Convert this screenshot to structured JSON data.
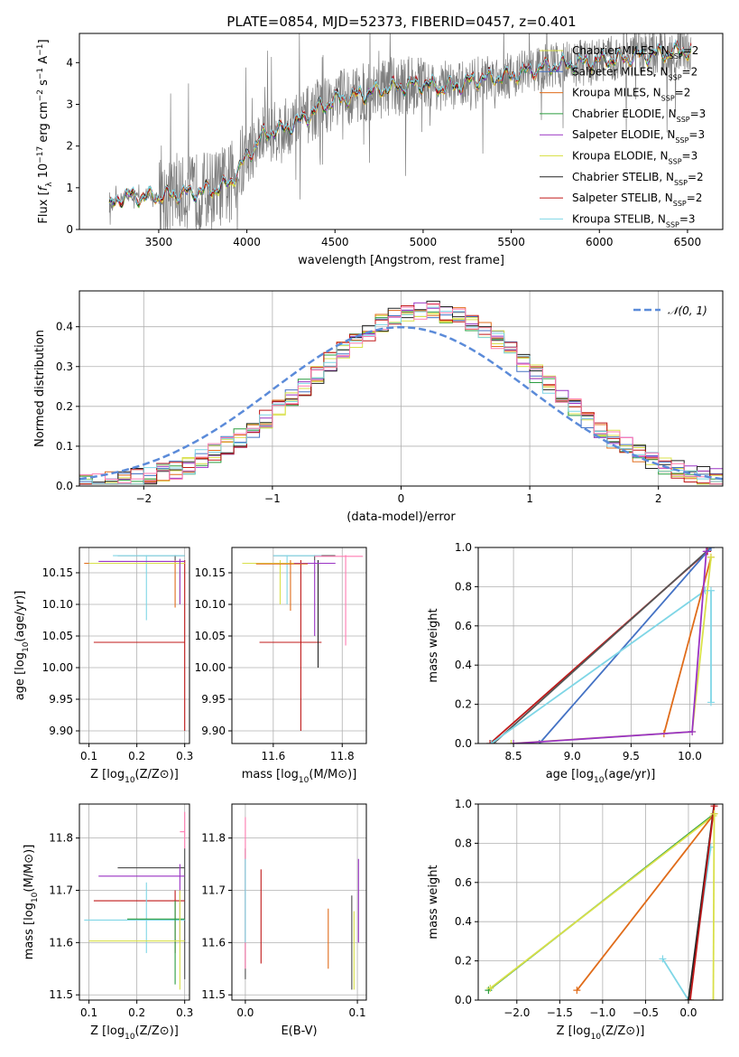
{
  "colors": [
    "#4c4c4c",
    "#1f1f1f",
    "#4472c4",
    "#e06c1a",
    "#2a9d3f",
    "#9a33c4",
    "#d9e04a",
    "#222222",
    "#c01818",
    "#7fd6e6",
    "#ff7bb0",
    "#555555"
  ],
  "legend_colors": [
    "#d9e04a",
    "#4472c4",
    "#e06c1a",
    "#2a9d3f",
    "#9a33c4",
    "#d9e04a",
    "#222222",
    "#c01818",
    "#7fd6e6"
  ],
  "chart_data": [
    {
      "id": "spectrum",
      "type": "line",
      "title": "PLATE=0854, MJD=52373, FIBERID=0457, z=0.401",
      "xlabel": "wavelength [Angstrom, rest frame]",
      "ylabel": "Flux [f_λ 10^-17 erg cm^-2 s^-1 A^-1]",
      "xlim": [
        3050,
        6700
      ],
      "ylim": [
        0,
        4.7
      ],
      "xticks": [
        3500,
        4000,
        4500,
        5000,
        5500,
        6000,
        6500
      ],
      "yticks": [
        0,
        1,
        2,
        3,
        4
      ],
      "grid": false,
      "legend_position": "upper-right",
      "data_color": "#7f7f7f",
      "continuum_knots": {
        "x": [
          3220,
          3260,
          3300,
          3400,
          3500,
          3600,
          3700,
          3800,
          3900,
          4000,
          4100,
          4200,
          4300,
          4400,
          4500,
          4600,
          4700,
          4800,
          4900,
          5000,
          5100,
          5200,
          5300,
          5400,
          5500,
          5600,
          5700,
          5800,
          5900,
          6000,
          6100,
          6200,
          6300,
          6400,
          6520
        ],
        "y": [
          0.5,
          0.7,
          0.8,
          0.78,
          0.8,
          0.85,
          0.9,
          0.95,
          1.1,
          1.75,
          2.3,
          2.4,
          2.6,
          2.9,
          3.1,
          3.2,
          3.3,
          3.4,
          3.45,
          3.5,
          3.4,
          3.45,
          3.6,
          3.65,
          3.7,
          3.8,
          3.9,
          3.95,
          4.0,
          4.05,
          4.1,
          4.15,
          4.2,
          4.25,
          4.3
        ]
      },
      "legend": [
        {
          "name": "Chabrier MILES, N",
          "sub": "SSP",
          "suffix": "=2"
        },
        {
          "name": "Salpeter MILES, N",
          "sub": "SSP",
          "suffix": "=2"
        },
        {
          "name": "Kroupa MILES, N",
          "sub": "SSP",
          "suffix": "=2"
        },
        {
          "name": "Chabrier ELODIE, N",
          "sub": "SSP",
          "suffix": "=3"
        },
        {
          "name": "Salpeter ELODIE, N",
          "sub": "SSP",
          "suffix": "=3"
        },
        {
          "name": "Kroupa ELODIE, N",
          "sub": "SSP",
          "suffix": "=3"
        },
        {
          "name": "Chabrier STELIB, N",
          "sub": "SSP",
          "suffix": "=2"
        },
        {
          "name": "Salpeter STELIB, N",
          "sub": "SSP",
          "suffix": "=2"
        },
        {
          "name": "Kroupa STELIB, N",
          "sub": "SSP",
          "suffix": "=3"
        }
      ]
    },
    {
      "id": "residuals",
      "type": "histogram",
      "xlabel": "(data-model)/error",
      "ylabel": "Normed distribution",
      "xlim": [
        -2.5,
        2.5
      ],
      "ylim": [
        0,
        0.49
      ],
      "xticks": [
        -2,
        -1,
        0,
        1,
        2
      ],
      "yticks": [
        0.0,
        0.1,
        0.2,
        0.3,
        0.4
      ],
      "grid": true,
      "bin_width": 0.1,
      "reference_curve": {
        "name": "𝒩(0, 1)",
        "mean": 0,
        "sigma": 1,
        "color": "#5b8bd9",
        "style": "dashed"
      },
      "legend_position": "upper-right"
    },
    {
      "id": "age-vs-Z",
      "type": "errorbar",
      "xlabel": "Z [log10(Z/Z⊙)]",
      "ylabel": "age [log10(age/yr)]",
      "xlim": [
        0.08,
        0.31
      ],
      "ylim": [
        9.88,
        10.19
      ],
      "xticks": [
        0.1,
        0.2,
        0.3
      ],
      "yticks": [
        9.9,
        9.95,
        10.0,
        10.05,
        10.1,
        10.15
      ],
      "grid": true,
      "points": [
        {
          "x": 0.28,
          "y": 10.177,
          "xlo": 0.16,
          "xhi": 0.3,
          "ylo": 10.17,
          "yhi": 10.178,
          "c": 0
        },
        {
          "x": 0.3,
          "y": 10.04,
          "xlo": 0.11,
          "xhi": 0.3,
          "ylo": 9.9,
          "yhi": 10.17,
          "c": 8
        },
        {
          "x": 0.22,
          "y": 10.177,
          "xlo": 0.15,
          "xhi": 0.3,
          "ylo": 10.075,
          "yhi": 10.178,
          "c": 9
        },
        {
          "x": 0.28,
          "y": 10.165,
          "xlo": 0.09,
          "xhi": 0.3,
          "ylo": 10.095,
          "yhi": 10.17,
          "c": 3
        },
        {
          "x": 0.29,
          "y": 10.165,
          "xlo": 0.1,
          "xhi": 0.3,
          "ylo": 10.1,
          "yhi": 10.17,
          "c": 6
        },
        {
          "x": 0.29,
          "y": 10.168,
          "xlo": 0.12,
          "xhi": 0.3,
          "ylo": 10.1,
          "yhi": 10.172,
          "c": 5
        }
      ]
    },
    {
      "id": "age-vs-mass",
      "type": "errorbar",
      "xlabel": "mass [log10(M/M⊙)]",
      "ylabel": "",
      "xlim": [
        11.48,
        11.87
      ],
      "ylim": [
        9.88,
        10.19
      ],
      "xticks": [
        11.6,
        11.8
      ],
      "yticks": [
        9.9,
        9.95,
        10.0,
        10.05,
        10.1,
        10.15
      ],
      "grid": true,
      "points": [
        {
          "x": 11.72,
          "y": 10.177,
          "xlo": 11.6,
          "xhi": 11.78,
          "ylo": 10.17,
          "yhi": 10.178,
          "c": 0
        },
        {
          "x": 11.68,
          "y": 10.04,
          "xlo": 11.56,
          "xhi": 11.74,
          "ylo": 9.9,
          "yhi": 10.17,
          "c": 8
        },
        {
          "x": 11.64,
          "y": 10.177,
          "xlo": 11.6,
          "xhi": 11.74,
          "ylo": 10.1,
          "yhi": 10.178,
          "c": 9
        },
        {
          "x": 11.73,
          "y": 10.165,
          "xlo": 11.53,
          "xhi": 11.78,
          "ylo": 10.0,
          "yhi": 10.17,
          "c": 7
        },
        {
          "x": 11.72,
          "y": 10.165,
          "xlo": 11.64,
          "xhi": 11.78,
          "ylo": 10.05,
          "yhi": 10.17,
          "c": 5
        },
        {
          "x": 11.81,
          "y": 10.176,
          "xlo": 11.72,
          "xhi": 11.86,
          "ylo": 10.035,
          "yhi": 10.178,
          "c": 10
        },
        {
          "x": 11.62,
          "y": 10.165,
          "xlo": 11.51,
          "xhi": 11.66,
          "ylo": 10.1,
          "yhi": 10.17,
          "c": 6
        },
        {
          "x": 11.65,
          "y": 10.164,
          "xlo": 11.55,
          "xhi": 11.7,
          "ylo": 10.09,
          "yhi": 10.17,
          "c": 3
        }
      ]
    },
    {
      "id": "weight-vs-age",
      "type": "line",
      "xlabel": "age [log10(age/yr)]",
      "ylabel": "mass weight",
      "xlim": [
        8.2,
        10.28
      ],
      "ylim": [
        0,
        1
      ],
      "xticks": [
        8.5,
        9.0,
        9.5,
        10.0
      ],
      "yticks": [
        0.0,
        0.2,
        0.4,
        0.6,
        0.8,
        1.0
      ],
      "grid": true,
      "series": [
        {
          "x": [
            8.3,
            10.15
          ],
          "y": [
            0.0,
            0.98
          ],
          "c": 8
        },
        {
          "x": [
            8.33,
            10.18
          ],
          "y": [
            0.0,
            1.0
          ],
          "c": 11
        },
        {
          "x": [
            8.72,
            10.18
          ],
          "y": [
            0.0,
            1.0
          ],
          "c": 2
        },
        {
          "x": [
            8.31,
            10.13
          ],
          "y": [
            0.0,
            0.78
          ],
          "c": 9
        },
        {
          "x": [
            9.78,
            10.18
          ],
          "y": [
            0.05,
            0.95
          ],
          "c": 3
        },
        {
          "x": [
            8.48,
            10.02,
            10.18
          ],
          "y": [
            0.0,
            0.06,
            0.95
          ],
          "c": 6
        },
        {
          "x": [
            8.5,
            10.02,
            10.14
          ],
          "y": [
            0.0,
            0.06,
            0.98
          ],
          "c": 5
        },
        {
          "x": [
            10.18,
            10.18
          ],
          "y": [
            0.21,
            0.78
          ],
          "c": 9
        }
      ]
    },
    {
      "id": "mass-vs-Z",
      "type": "errorbar",
      "xlabel": "Z [log10(Z/Z⊙)]",
      "ylabel": "mass [log10(M/M⊙)]",
      "xlim": [
        0.08,
        0.31
      ],
      "ylim": [
        11.49,
        11.865
      ],
      "xticks": [
        0.1,
        0.2,
        0.3
      ],
      "yticks": [
        11.5,
        11.6,
        11.7,
        11.8
      ],
      "grid": true,
      "points": [
        {
          "x": 0.3,
          "y": 11.743,
          "xlo": 0.16,
          "xhi": 0.3,
          "ylo": 11.53,
          "yhi": 11.78,
          "c": 0
        },
        {
          "x": 0.29,
          "y": 11.727,
          "xlo": 0.12,
          "xhi": 0.3,
          "ylo": 11.6,
          "yhi": 11.75,
          "c": 5
        },
        {
          "x": 0.28,
          "y": 11.68,
          "xlo": 0.11,
          "xhi": 0.3,
          "ylo": 11.58,
          "yhi": 11.7,
          "c": 8
        },
        {
          "x": 0.22,
          "y": 11.643,
          "xlo": 0.09,
          "xhi": 0.3,
          "ylo": 11.58,
          "yhi": 11.715,
          "c": 9
        },
        {
          "x": 0.28,
          "y": 11.645,
          "xlo": 0.18,
          "xhi": 0.3,
          "ylo": 11.52,
          "yhi": 11.68,
          "c": 4
        },
        {
          "x": 0.29,
          "y": 11.603,
          "xlo": 0.1,
          "xhi": 0.3,
          "ylo": 11.51,
          "yhi": 11.7,
          "c": 6
        },
        {
          "x": 0.3,
          "y": 11.812,
          "xlo": 0.29,
          "xhi": 0.3,
          "ylo": 11.78,
          "yhi": 11.85,
          "c": 10
        }
      ]
    },
    {
      "id": "mass-vs-EBV",
      "type": "errorbar",
      "xlabel": "E(B-V)",
      "ylabel": "",
      "xlim": [
        -0.012,
        0.108
      ],
      "ylim": [
        11.49,
        11.865
      ],
      "xticks": [
        0.0,
        0.1
      ],
      "yticks": [
        11.5,
        11.6,
        11.7,
        11.8
      ],
      "grid": true,
      "points": [
        {
          "x": 0.0,
          "y": 11.7,
          "xlo": 0.0,
          "xhi": 0.0,
          "ylo": 11.53,
          "yhi": 11.78,
          "c": 0
        },
        {
          "x": 0.0,
          "y": 11.66,
          "xlo": 0.0,
          "xhi": 0.0,
          "ylo": 11.55,
          "yhi": 11.84,
          "c": 10
        },
        {
          "x": 0.0,
          "y": 11.68,
          "xlo": 0.0,
          "xhi": 0.0,
          "ylo": 11.6,
          "yhi": 11.76,
          "c": 9
        },
        {
          "x": 0.014,
          "y": 11.65,
          "xlo": 0.014,
          "xhi": 0.014,
          "ylo": 11.56,
          "yhi": 11.74,
          "c": 8
        },
        {
          "x": 0.074,
          "y": 11.61,
          "xlo": 0.074,
          "xhi": 0.074,
          "ylo": 11.55,
          "yhi": 11.665,
          "c": 3
        },
        {
          "x": 0.095,
          "y": 11.63,
          "xlo": 0.095,
          "xhi": 0.095,
          "ylo": 11.51,
          "yhi": 11.69,
          "c": 0
        },
        {
          "x": 0.097,
          "y": 11.62,
          "xlo": 0.097,
          "xhi": 0.097,
          "ylo": 11.51,
          "yhi": 11.66,
          "c": 6
        },
        {
          "x": 0.101,
          "y": 11.7,
          "xlo": 0.101,
          "xhi": 0.101,
          "ylo": 11.6,
          "yhi": 11.76,
          "c": 5
        }
      ]
    },
    {
      "id": "weight-vs-Z",
      "type": "line",
      "xlabel": "Z [log10(Z/Z⊙)]",
      "ylabel": "mass weight",
      "xlim": [
        -2.45,
        0.4
      ],
      "ylim": [
        0,
        1
      ],
      "xticks": [
        -2.0,
        -1.5,
        -1.0,
        -0.5,
        0.0
      ],
      "yticks": [
        0.0,
        0.2,
        0.4,
        0.6,
        0.8,
        1.0
      ],
      "grid": true,
      "series": [
        {
          "x": [
            -2.33,
            0.3
          ],
          "y": [
            0.05,
            0.95
          ],
          "c": 4
        },
        {
          "x": [
            -2.31,
            0.29
          ],
          "y": [
            0.06,
            0.94
          ],
          "c": 6
        },
        {
          "x": [
            -1.3,
            0.3
          ],
          "y": [
            0.05,
            0.95
          ],
          "c": 3
        },
        {
          "x": [
            -0.3,
            0.0,
            0.26
          ],
          "y": [
            0.21,
            0.0,
            0.78
          ],
          "c": 9
        },
        {
          "x": [
            0.0,
            0.3
          ],
          "y": [
            0.0,
            1.0
          ],
          "c": 7
        },
        {
          "x": [
            0.02,
            0.3
          ],
          "y": [
            0.0,
            0.99
          ],
          "c": 8
        },
        {
          "x": [
            0.29,
            0.3
          ],
          "y": [
            0.0,
            0.95
          ],
          "c": 6
        }
      ]
    }
  ]
}
